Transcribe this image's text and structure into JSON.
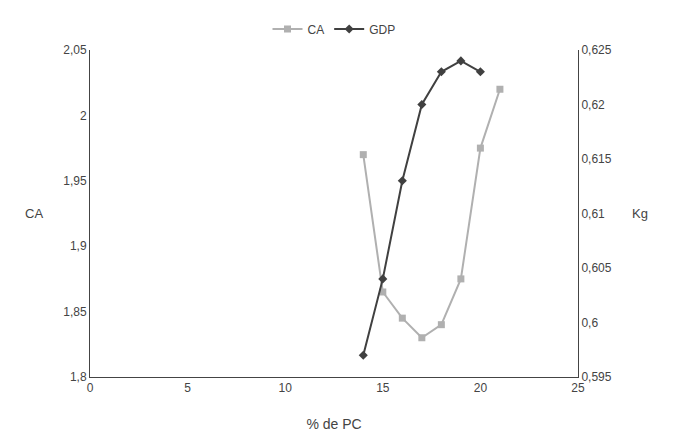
{
  "chart_data": {
    "type": "line",
    "xlabel": "% de PC",
    "ylabel": "CA",
    "y2label": "Kg",
    "xlim": [
      0,
      25
    ],
    "xticks": [
      0,
      5,
      10,
      15,
      20,
      25
    ],
    "ylim": [
      1.8,
      2.05
    ],
    "yticks": [
      {
        "value": 1.8,
        "label": "1,8"
      },
      {
        "value": 1.85,
        "label": "1,85"
      },
      {
        "value": 1.9,
        "label": "1,9"
      },
      {
        "value": 1.95,
        "label": "1,95"
      },
      {
        "value": 2.0,
        "label": "2"
      },
      {
        "value": 2.05,
        "label": "2,05"
      }
    ],
    "y2lim": [
      0.595,
      0.625
    ],
    "y2ticks": [
      {
        "value": 0.595,
        "label": "0,595"
      },
      {
        "value": 0.6,
        "label": "0,6"
      },
      {
        "value": 0.605,
        "label": "0,605"
      },
      {
        "value": 0.61,
        "label": "0,61"
      },
      {
        "value": 0.615,
        "label": "0,615"
      },
      {
        "value": 0.62,
        "label": "0,62"
      },
      {
        "value": 0.625,
        "label": "0,625"
      }
    ],
    "grid": false,
    "legend": "top",
    "series": [
      {
        "name": "CA",
        "color": "#b0b0b0",
        "marker": "square",
        "axis": "y",
        "x": [
          14,
          15,
          16,
          17,
          18,
          19,
          20,
          21
        ],
        "values": [
          1.97,
          1.865,
          1.845,
          1.83,
          1.84,
          1.875,
          1.975,
          2.02
        ]
      },
      {
        "name": "GDP",
        "color": "#404040",
        "marker": "diamond",
        "axis": "y2",
        "x": [
          14,
          15,
          16,
          17,
          18,
          19,
          20
        ],
        "values": [
          0.597,
          0.604,
          0.613,
          0.62,
          0.623,
          0.624,
          0.623
        ]
      }
    ]
  }
}
